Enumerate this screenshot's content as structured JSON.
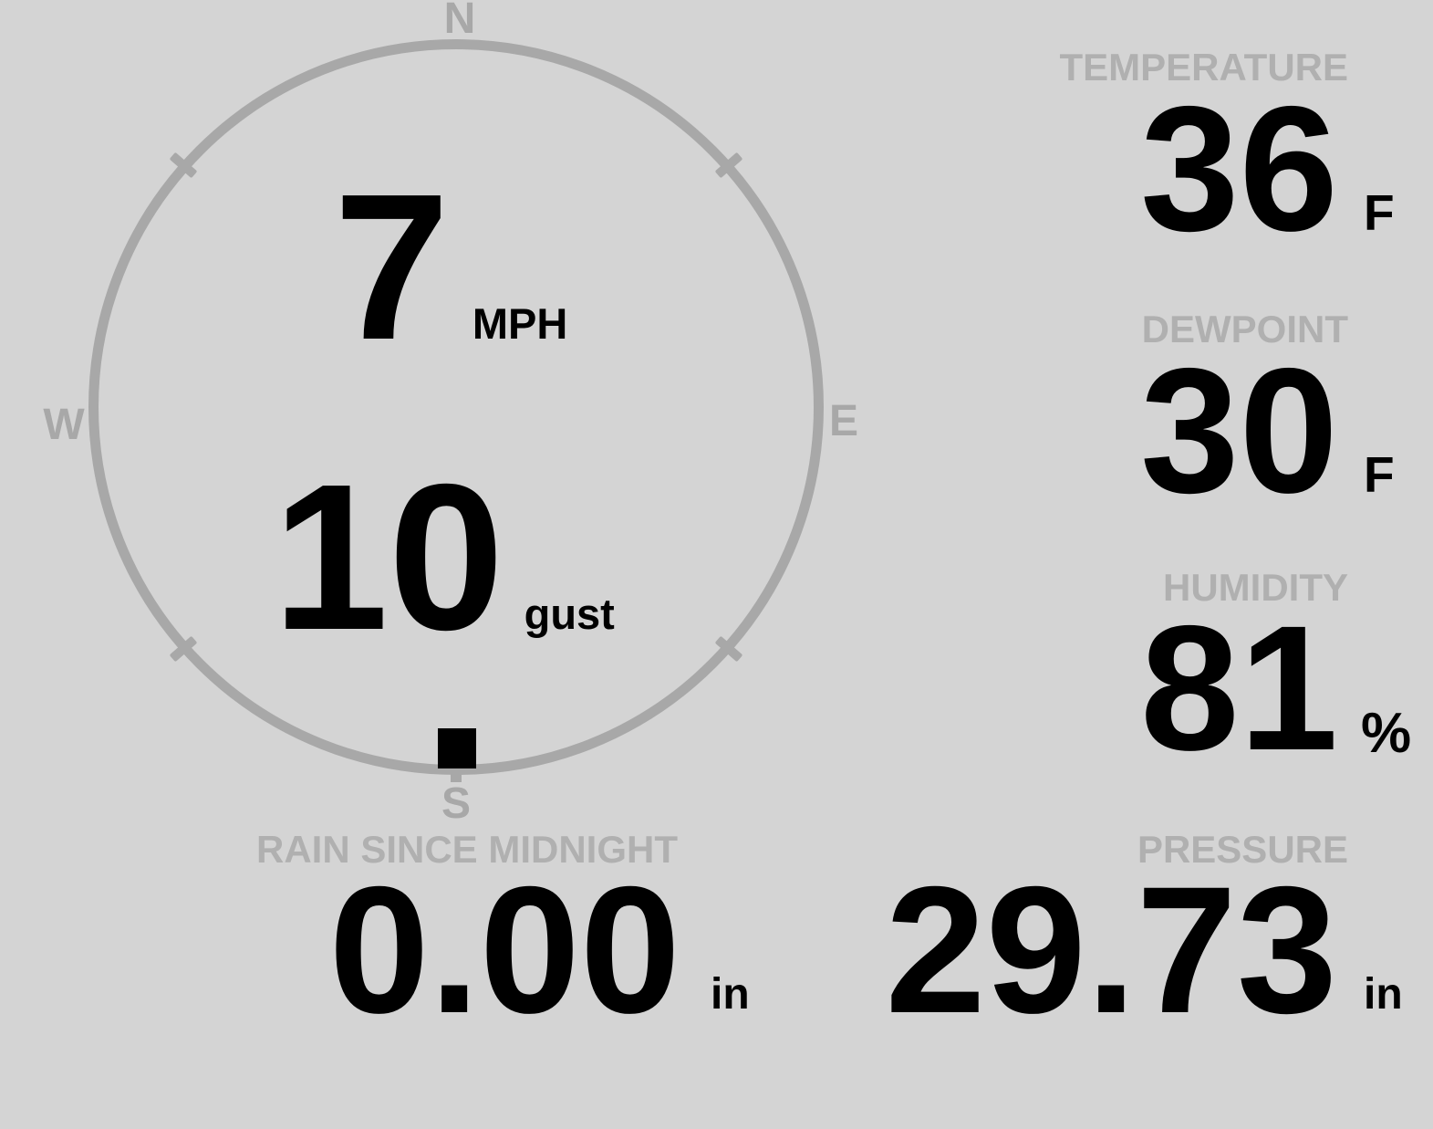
{
  "wind": {
    "speed": "7",
    "speed_unit": "MPH",
    "gust": "10",
    "gust_unit": "gust",
    "direction": "S",
    "compass": {
      "north": "N",
      "east": "E",
      "south": "S",
      "west": "W"
    }
  },
  "metrics": {
    "temperature": {
      "label": "TEMPERATURE",
      "value": "36",
      "unit": "F"
    },
    "dewpoint": {
      "label": "DEWPOINT",
      "value": "30",
      "unit": "F"
    },
    "humidity": {
      "label": "HUMIDITY",
      "value": "81",
      "unit": "%"
    },
    "rain": {
      "label": "RAIN SINCE MIDNIGHT",
      "value": "0.00",
      "unit": "in"
    },
    "pressure": {
      "label": "PRESSURE",
      "value": "29.73",
      "unit": "in"
    }
  },
  "colors": {
    "background": "#d4d4d4",
    "gauge": "#a8a8a8",
    "label": "#b0b0b0",
    "value": "#000000"
  }
}
